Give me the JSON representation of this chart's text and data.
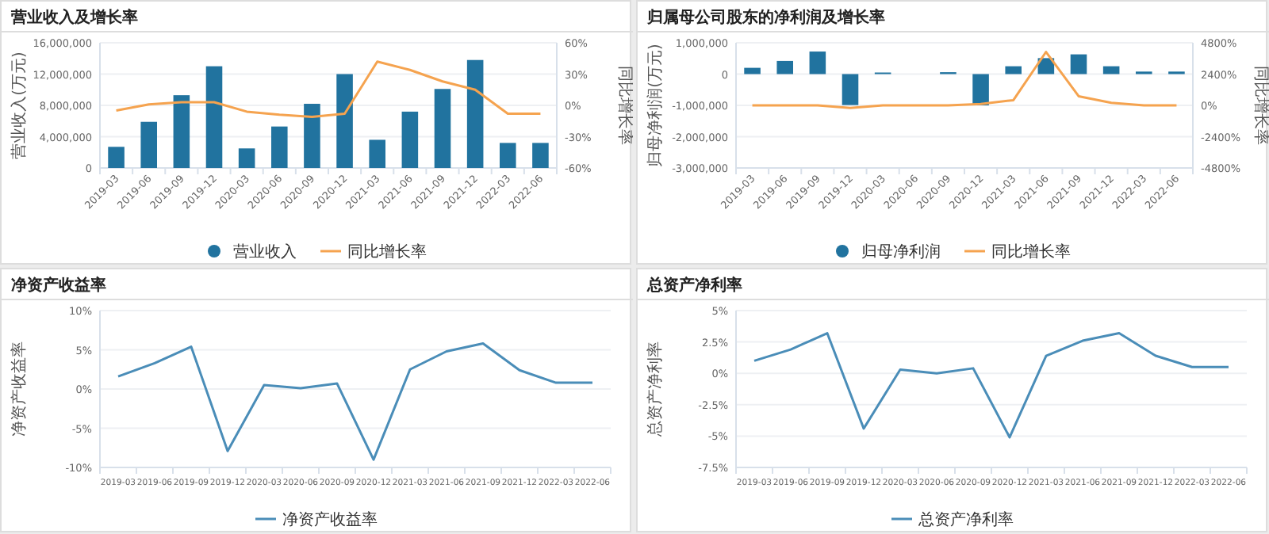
{
  "chart_data": [
    {
      "type": "bar",
      "title": "营业收入及增长率",
      "ylabel": "营业收入(万元)",
      "y2label": "同比增长率",
      "categories": [
        "2019-03",
        "2019-06",
        "2019-09",
        "2019-12",
        "2020-03",
        "2020-06",
        "2020-09",
        "2020-12",
        "2021-03",
        "2021-06",
        "2021-09",
        "2021-12",
        "2022-03",
        "2022-06"
      ],
      "series": [
        {
          "name": "营业收入",
          "color": "#21739f",
          "values": [
            2700000,
            5900000,
            9300000,
            13000000,
            2500000,
            5300000,
            8200000,
            12000000,
            3600000,
            7200000,
            10100000,
            13800000,
            3200000,
            3200000
          ]
        },
        {
          "name": "同比增长率",
          "type": "line",
          "axis": "y2",
          "color": "#f5a34f",
          "values": [
            -5,
            1,
            3,
            3,
            -6,
            -9,
            -11,
            -8,
            42,
            34,
            23,
            15,
            -8,
            -8
          ]
        }
      ],
      "ylim": [
        0,
        16000000
      ],
      "yticks": [
        0,
        {
          "value": 4000000,
          "label": "4,000,000"
        },
        {
          "value": 8000000,
          "label": "8,000,000"
        },
        {
          "value": 12000000,
          "label": "12,000,000"
        },
        {
          "value": 16000000,
          "label": "16,000,000"
        }
      ],
      "y2lim": [
        -60,
        60
      ],
      "y2ticks": [
        {
          "value": -60,
          "label": "-60%"
        },
        {
          "value": -30,
          "label": "-30%"
        },
        {
          "value": 0,
          "label": "0%"
        },
        {
          "value": 30,
          "label": "30%"
        },
        {
          "value": 60,
          "label": "60%"
        }
      ],
      "grid": "y",
      "legend": "bottom"
    },
    {
      "type": "bar",
      "title": "归属母公司股东的净利润及增长率",
      "ylabel": "归母净利润(万元)",
      "y2label": "同比增长率",
      "categories": [
        "2019-03",
        "2019-06",
        "2019-09",
        "2019-12",
        "2020-03",
        "2020-06",
        "2020-09",
        "2020-12",
        "2021-03",
        "2021-06",
        "2021-09",
        "2021-12",
        "2022-03",
        "2022-06"
      ],
      "series": [
        {
          "name": "归母净利润",
          "color": "#21739f",
          "values": [
            200000,
            420000,
            720000,
            -990000,
            50000,
            null,
            60000,
            -1000000,
            250000,
            510000,
            630000,
            250000,
            80000,
            80000
          ]
        },
        {
          "name": "同比增长率",
          "type": "line",
          "axis": "y2",
          "color": "#f5a34f",
          "values": [
            0,
            0,
            0,
            -200,
            0,
            0,
            0,
            100,
            400,
            4100,
            700,
            200,
            0,
            0
          ]
        }
      ],
      "ylim": [
        -3000000,
        1000000
      ],
      "yticks": [
        {
          "value": -3000000,
          "label": "-3,000,000"
        },
        {
          "value": -2000000,
          "label": "-2,000,000"
        },
        {
          "value": -1000000,
          "label": "-1,000,000"
        },
        0,
        {
          "value": 1000000,
          "label": "1,000,000"
        }
      ],
      "y2lim": [
        -4800,
        4800
      ],
      "y2ticks": [
        {
          "value": -4800,
          "label": "-4800%"
        },
        {
          "value": -2400,
          "label": "-2400%"
        },
        {
          "value": 0,
          "label": "0%"
        },
        {
          "value": 2400,
          "label": "2400%"
        },
        {
          "value": 4800,
          "label": "4800%"
        }
      ],
      "grid": "y",
      "legend": "bottom"
    },
    {
      "type": "line",
      "title": "净资产收益率",
      "ylabel": "净资产收益率",
      "categories": [
        "2019-03",
        "2019-06",
        "2019-09",
        "2019-12",
        "2020-03",
        "2020-06",
        "2020-09",
        "2020-12",
        "2021-03",
        "2021-06",
        "2021-09",
        "2021-12",
        "2022-03",
        "2022-06"
      ],
      "series": [
        {
          "name": "净资产收益率",
          "color": "#4a8db8",
          "values": [
            1.6,
            3.3,
            5.4,
            -7.9,
            0.5,
            0.1,
            0.7,
            -9.0,
            2.5,
            4.8,
            5.8,
            2.4,
            0.8,
            0.8
          ]
        }
      ],
      "ylim": [
        -10,
        10
      ],
      "yticks": [
        {
          "value": -10,
          "label": "-10%"
        },
        {
          "value": -5,
          "label": "-5%"
        },
        {
          "value": 0,
          "label": "0%"
        },
        {
          "value": 5,
          "label": "5%"
        },
        {
          "value": 10,
          "label": "10%"
        }
      ],
      "grid": "y",
      "legend": "bottom"
    },
    {
      "type": "line",
      "title": "总资产净利率",
      "ylabel": "总资产净利率",
      "categories": [
        "2019-03",
        "2019-06",
        "2019-09",
        "2019-12",
        "2020-03",
        "2020-06",
        "2020-09",
        "2020-12",
        "2021-03",
        "2021-06",
        "2021-09",
        "2021-12",
        "2022-03",
        "2022-06"
      ],
      "series": [
        {
          "name": "总资产净利率",
          "color": "#4a8db8",
          "values": [
            1.0,
            1.9,
            3.2,
            -4.4,
            0.3,
            0.0,
            0.4,
            -5.1,
            1.4,
            2.6,
            3.2,
            1.4,
            0.5,
            0.5
          ]
        }
      ],
      "ylim": [
        -7.5,
        5
      ],
      "yticks": [
        {
          "value": -7.5,
          "label": "-7.5%"
        },
        {
          "value": -5,
          "label": "-5%"
        },
        {
          "value": -2.5,
          "label": "-2.5%"
        },
        {
          "value": 0,
          "label": "0%"
        },
        {
          "value": 2.5,
          "label": "2.5%"
        },
        {
          "value": 5,
          "label": "5%"
        }
      ],
      "grid": "y",
      "legend": "bottom"
    }
  ]
}
